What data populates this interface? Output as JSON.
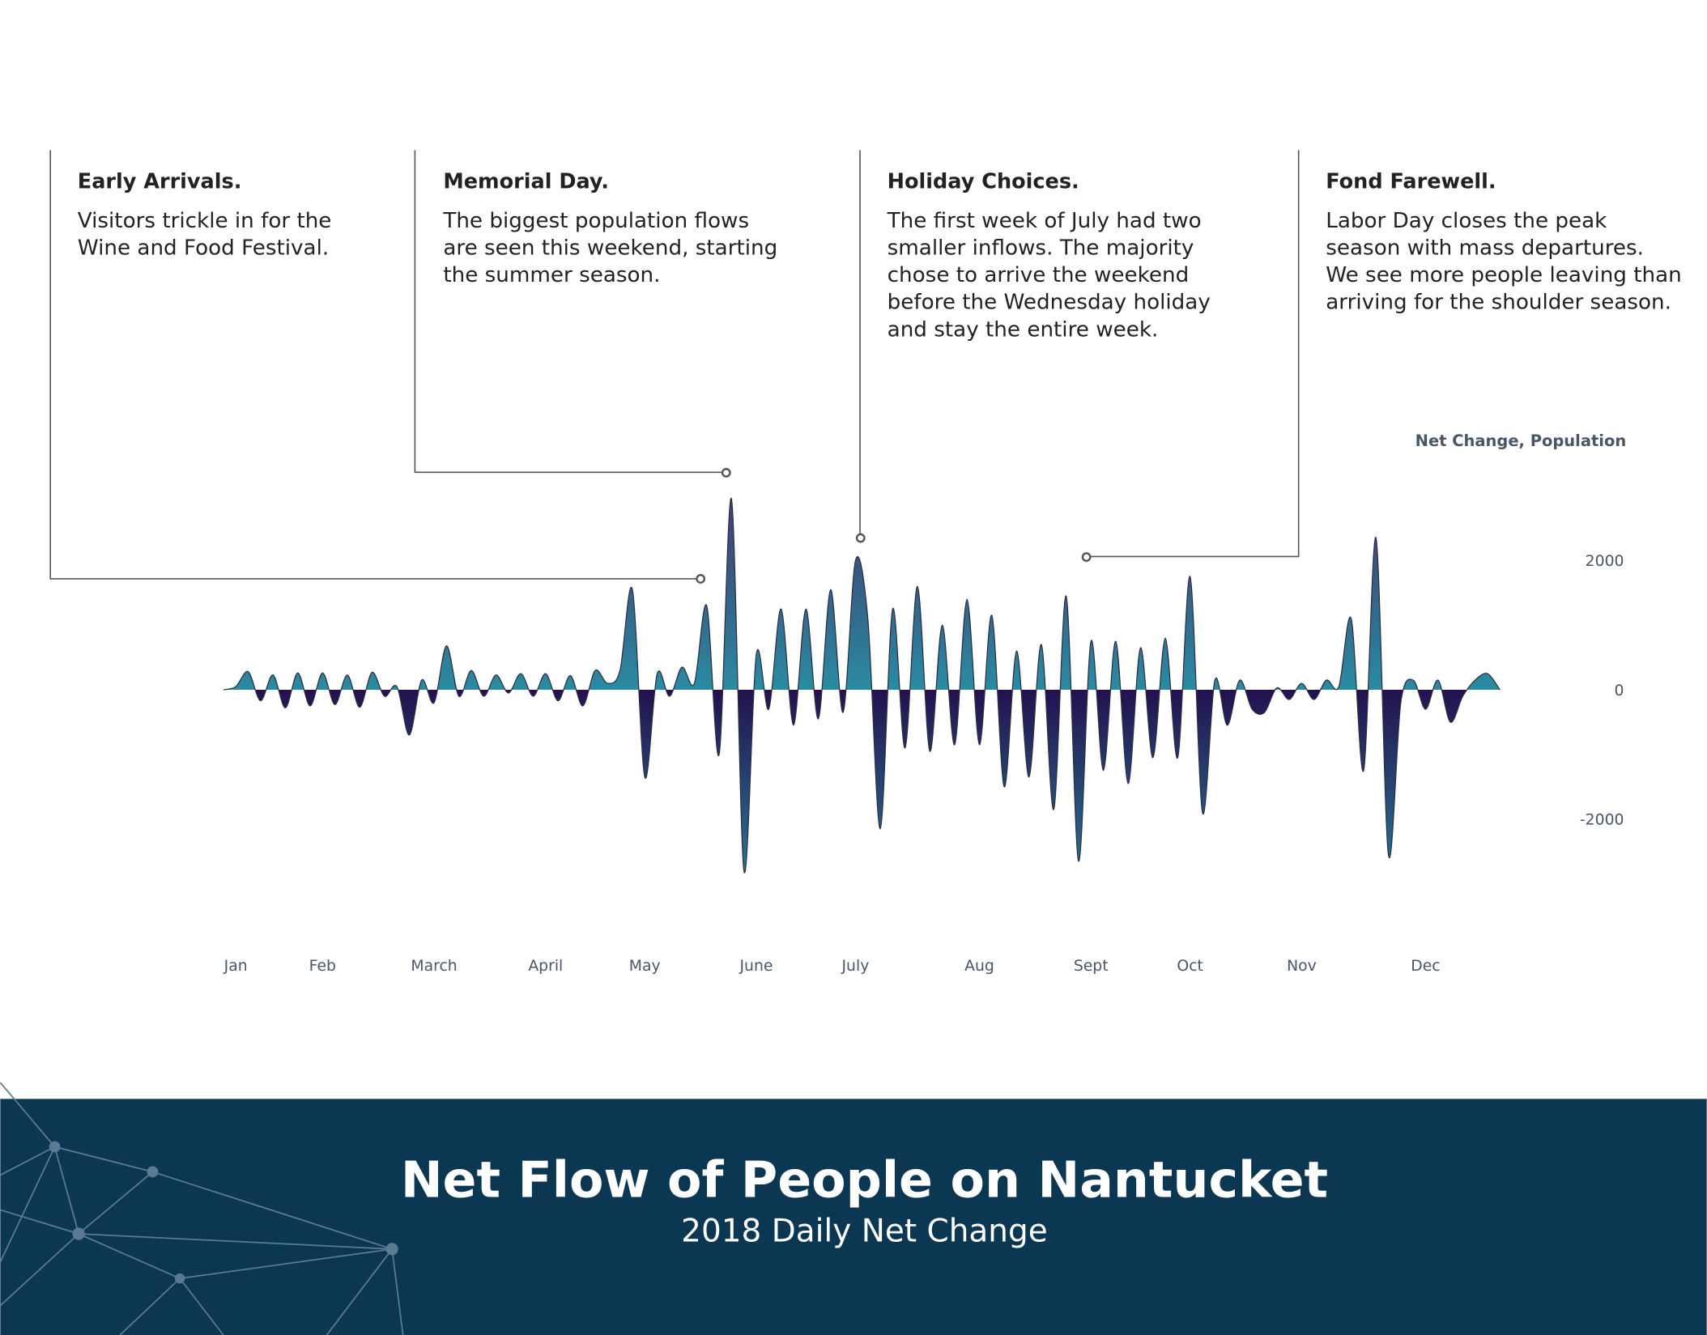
{
  "chart_data": {
    "type": "area",
    "title": "Net Flow of People on Nantucket",
    "subtitle": "2018 Daily Net Change",
    "y_axis_label": "Net Change, Population",
    "categories": [
      null,
      "Jan",
      null,
      null,
      null,
      null,
      null,
      null,
      "Feb",
      null,
      null,
      null,
      null,
      null,
      null,
      null,
      null,
      "March",
      null,
      null,
      null,
      null,
      null,
      null,
      null,
      null,
      "April",
      null,
      null,
      null,
      null,
      null,
      null,
      null,
      "May",
      null,
      null,
      null,
      null,
      null,
      null,
      null,
      null,
      "June",
      null,
      null,
      null,
      null,
      null,
      null,
      null,
      "July",
      null,
      null,
      null,
      null,
      null,
      null,
      null,
      null,
      null,
      "Aug",
      null,
      null,
      null,
      null,
      null,
      null,
      null,
      null,
      "Sept",
      null,
      null,
      null,
      null,
      null,
      null,
      null,
      "Oct",
      null,
      null,
      null,
      null,
      null,
      null,
      null,
      null,
      "Nov",
      null,
      null,
      null,
      null,
      null,
      null,
      null,
      null,
      null,
      "Dec",
      null,
      null,
      null,
      null,
      null,
      null
    ],
    "series": [
      {
        "color": "#2a8ba3",
        "negative_color": "#23114f",
        "values": [
          0,
          50,
          280,
          -170,
          230,
          -280,
          260,
          -250,
          260,
          -230,
          230,
          -270,
          270,
          -100,
          50,
          -700,
          150,
          -200,
          680,
          -100,
          300,
          -100,
          230,
          -50,
          250,
          -100,
          250,
          -170,
          220,
          -250,
          300,
          100,
          300,
          1550,
          -1350,
          250,
          -100,
          350,
          100,
          1300,
          -1000,
          2950,
          -2800,
          550,
          -300,
          1250,
          -550,
          1250,
          -450,
          1550,
          -350,
          2000,
          1100,
          -2150,
          1250,
          -900,
          1600,
          -950,
          1000,
          -850,
          1400,
          -850,
          1150,
          -1500,
          600,
          -1350,
          700,
          -1850,
          1450,
          -2650,
          750,
          -1250,
          750,
          -1450,
          650,
          -1050,
          800,
          -1050,
          1750,
          -1900,
          150,
          -550,
          150,
          -300,
          -350,
          30,
          -150,
          100,
          -150,
          150,
          50,
          1100,
          -1250,
          2350,
          -2550,
          -200,
          150,
          -300,
          150,
          -500,
          -100,
          150,
          250,
          0
        ]
      }
    ],
    "ylim": [
      -3500,
      3500
    ],
    "yticks": [
      -2000,
      0,
      2000
    ],
    "annotations": [
      {
        "title": "Early Arrivals.",
        "lines": [
          "Visitors trickle in for the",
          "Wine and Food Festival."
        ]
      },
      {
        "title": "Memorial Day.",
        "lines": [
          "The biggest population flows",
          "are seen this weekend, starting",
          "the summer season."
        ]
      },
      {
        "title": "Holiday Choices.",
        "lines": [
          "The first week of July had two",
          "smaller inflows. The majority",
          "chose to arrive the weekend",
          "before the Wednesday holiday",
          "and stay the entire week."
        ]
      },
      {
        "title": "Fond Farewell.",
        "lines": [
          "Labor Day closes the peak",
          "season with mass departures.",
          "We see more people leaving than",
          "arriving for the shoulder season."
        ]
      }
    ]
  }
}
